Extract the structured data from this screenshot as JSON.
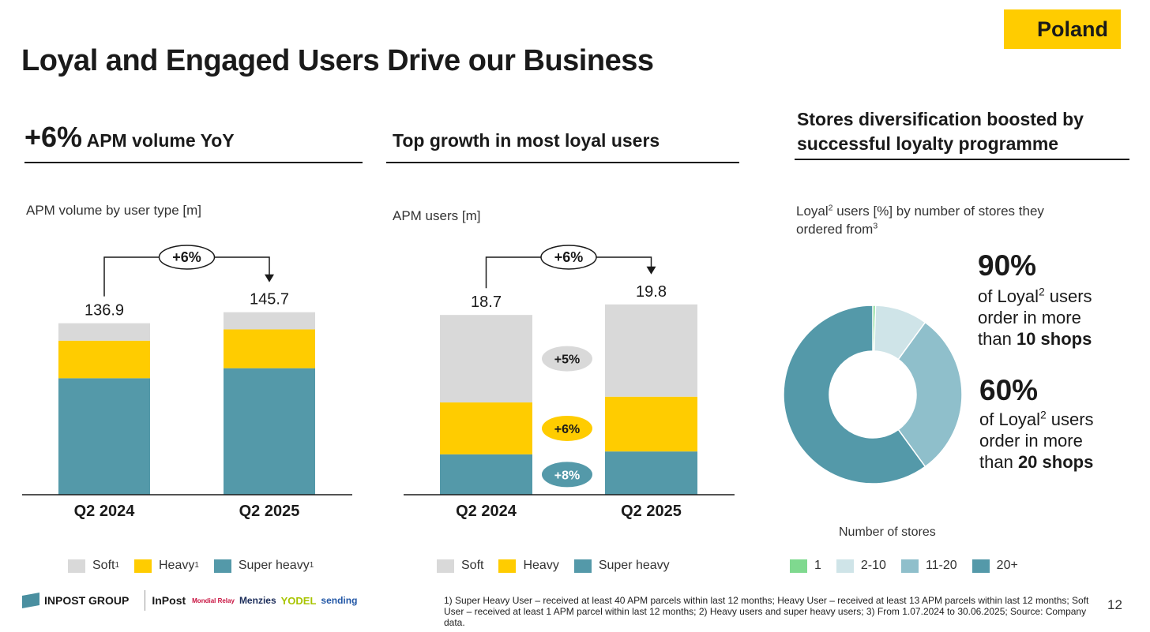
{
  "header": {
    "region": "Poland",
    "title": "Loyal and Engaged Users Drive our Business"
  },
  "sections": {
    "left": {
      "big": "+6%",
      "title": "APM volume YoY",
      "subtitle": "APM volume by user type [m]"
    },
    "middle": {
      "title": "Top growth in most loyal users",
      "subtitle": "APM users [m]"
    },
    "right": {
      "title_line1": "Stores diversification boosted by",
      "title_line2": "successful loyalty programme",
      "subtitle_a": "Loyal",
      "subtitle_sup1": "2",
      "subtitle_b": " users [%] by number of stores they",
      "subtitle_c": "ordered from",
      "subtitle_sup2": "3"
    }
  },
  "kpis": [
    {
      "value": "90%",
      "text_a": "of Loyal",
      "sup": "2",
      "text_b": " users",
      "line2": "order in more",
      "line3_pre": "than ",
      "line3_bold": "10 shops"
    },
    {
      "value": "60%",
      "text_a": "of Loyal",
      "sup": "2",
      "text_b": " users",
      "line2": "order in more",
      "line3_pre": "than ",
      "line3_bold": "20 shops"
    }
  ],
  "chart_data": [
    {
      "type": "bar",
      "stacked": true,
      "categories": [
        "Q2 2024",
        "Q2 2025"
      ],
      "totals": [
        "136.9",
        "145.7"
      ],
      "growth_label": "+6%",
      "ylim": [
        0,
        160
      ],
      "series": [
        {
          "name": "Super heavy",
          "color": "#5499a9",
          "values": [
            93.0,
            101.0
          ]
        },
        {
          "name": "Heavy",
          "color": "#ffcc00",
          "values": [
            30.0,
            31.0
          ]
        },
        {
          "name": "Soft",
          "color": "#d9d9d9",
          "values": [
            13.9,
            13.7
          ]
        }
      ],
      "legend": [
        {
          "label": "Soft",
          "sup": "1",
          "color": "#d9d9d9"
        },
        {
          "label": "Heavy",
          "sup": "1",
          "color": "#ffcc00"
        },
        {
          "label": "Super heavy",
          "sup": "1",
          "color": "#5499a9"
        }
      ]
    },
    {
      "type": "bar",
      "stacked": true,
      "categories": [
        "Q2 2024",
        "Q2 2025"
      ],
      "totals": [
        "18.7",
        "19.8"
      ],
      "growth_label": "+6%",
      "ylim": [
        0,
        22
      ],
      "series": [
        {
          "name": "Super heavy",
          "color": "#5499a9",
          "values": [
            4.2,
            4.5
          ],
          "growth": "+8%"
        },
        {
          "name": "Heavy",
          "color": "#ffcc00",
          "values": [
            5.4,
            5.7
          ],
          "growth": "+6%"
        },
        {
          "name": "Soft",
          "color": "#d9d9d9",
          "values": [
            9.1,
            9.6
          ],
          "growth": "+5%"
        }
      ],
      "legend": [
        {
          "label": "Soft",
          "color": "#d9d9d9"
        },
        {
          "label": "Heavy",
          "color": "#ffcc00"
        },
        {
          "label": "Super heavy",
          "color": "#5499a9"
        }
      ]
    },
    {
      "type": "pie",
      "donut": true,
      "title": "Number of stores",
      "slices": [
        {
          "label": "1",
          "value": 0.5,
          "color": "#7fd98f"
        },
        {
          "label": "2-10",
          "value": 9.5,
          "color": "#cfe4e8"
        },
        {
          "label": "11-20",
          "value": 30,
          "color": "#8fbfcb"
        },
        {
          "label": "20+",
          "value": 60,
          "color": "#5499a9"
        }
      ]
    }
  ],
  "footer": {
    "logos": [
      "INPOST GROUP",
      "InPost",
      "Mondial Relay",
      "Menzies",
      "YODEL",
      "sending"
    ],
    "footnote": "1) Super Heavy User – received at least 40 APM parcels within last 12 months; Heavy User – received at least 13 APM parcels within last 12 months; Soft User – received at least 1 APM parcel within last 12 months; 2) Heavy users and super heavy users; 3) From 1.07.2024 to 30.06.2025; Source: Company data.",
    "page": "12"
  }
}
